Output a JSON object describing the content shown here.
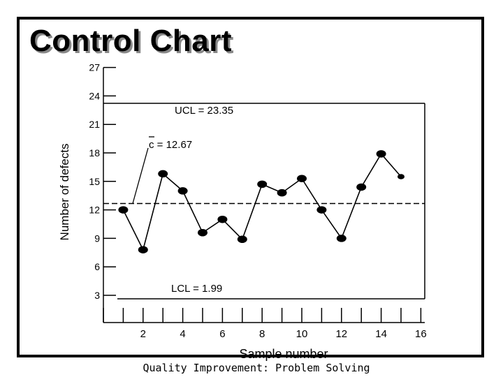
{
  "header": {
    "title": "Control Chart"
  },
  "footer": {
    "caption": "Quality Improvement: Problem Solving"
  },
  "colors": {
    "line": "#000000",
    "background": "#ffffff"
  },
  "chart_data": {
    "type": "line",
    "title": "Control Chart",
    "xlabel": "Sample number",
    "ylabel": "Number of defects",
    "xlim": [
      0,
      16
    ],
    "ylim": [
      3,
      27
    ],
    "yticks": [
      3,
      6,
      9,
      12,
      15,
      18,
      21,
      24,
      27
    ],
    "xticks": [
      2,
      4,
      6,
      8,
      10,
      12,
      14,
      16
    ],
    "x": [
      1,
      2,
      3,
      4,
      5,
      6,
      7,
      8,
      9,
      10,
      11,
      12,
      13,
      14,
      15
    ],
    "values": [
      12,
      7.8,
      15.8,
      14,
      9.6,
      11,
      8.9,
      14.7,
      13.8,
      15.3,
      12,
      9,
      14.4,
      17.9,
      15.5
    ],
    "center_line": {
      "value": 12.67,
      "label": "c = 12.67"
    },
    "ucl": {
      "value": 23.35,
      "label": "UCL = 23.35"
    },
    "lcl": {
      "value": 1.99,
      "label": "LCL = 1.99"
    },
    "grid": false,
    "legend": "none"
  }
}
